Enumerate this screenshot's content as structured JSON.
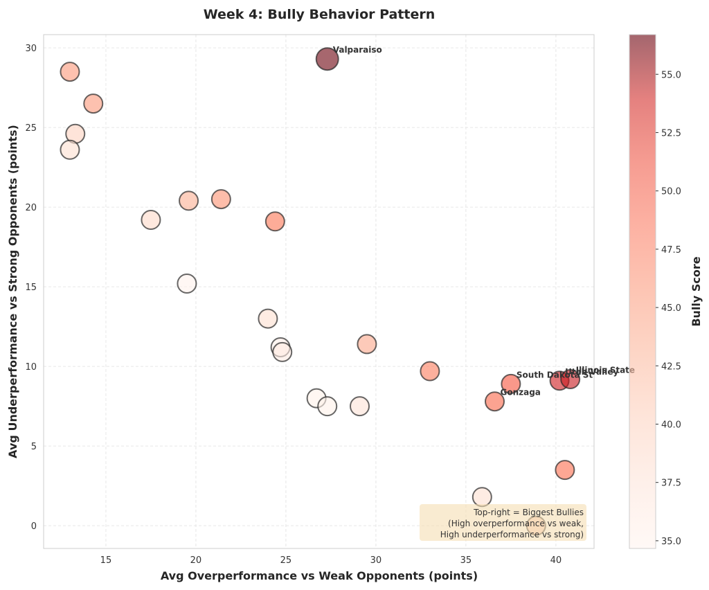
{
  "chart_data": {
    "type": "scatter",
    "title": "Week 4: Bully Behavior Pattern",
    "xlabel": "Avg Overperformance vs Weak Opponents (points)",
    "ylabel": "Avg Underperformance vs Strong Opponents (points)",
    "xlim": [
      11.54,
      42.12
    ],
    "ylim": [
      -1.43,
      30.83
    ],
    "xticks": [
      15,
      20,
      25,
      30,
      35,
      40
    ],
    "yticks": [
      0,
      5,
      10,
      15,
      20,
      25,
      30
    ],
    "grid": true,
    "colorbar": {
      "label": "Bully Score",
      "range": [
        34.67,
        56.7
      ],
      "ticks": [
        "35.0",
        "37.5",
        "40.0",
        "42.5",
        "45.0",
        "47.5",
        "50.0",
        "52.5",
        "55.0"
      ],
      "colormap": "Reds",
      "alpha": 0.6
    },
    "annotation_box": {
      "lines": [
        "Top-right = Biggest Bullies",
        "(High overperformance vs weak,",
        "High underperformance vs strong)"
      ],
      "position": "bottom-right",
      "color": "#f5deb3"
    },
    "points": [
      {
        "x": 27.3,
        "y": 29.3,
        "score": 56.5,
        "label": "Valparaiso",
        "large": true
      },
      {
        "x": 13.0,
        "y": 28.5,
        "score": 42.5,
        "label": ""
      },
      {
        "x": 14.3,
        "y": 26.5,
        "score": 42.5,
        "label": ""
      },
      {
        "x": 13.3,
        "y": 24.6,
        "score": 38.5,
        "label": ""
      },
      {
        "x": 13.0,
        "y": 23.6,
        "score": 37.5,
        "label": ""
      },
      {
        "x": 17.5,
        "y": 19.2,
        "score": 38.0,
        "label": ""
      },
      {
        "x": 19.6,
        "y": 20.4,
        "score": 41.0,
        "label": ""
      },
      {
        "x": 21.4,
        "y": 20.5,
        "score": 43.0,
        "label": ""
      },
      {
        "x": 24.4,
        "y": 19.1,
        "score": 45.0,
        "label": ""
      },
      {
        "x": 19.5,
        "y": 15.2,
        "score": 35.0,
        "label": ""
      },
      {
        "x": 24.0,
        "y": 13.0,
        "score": 37.5,
        "label": ""
      },
      {
        "x": 24.7,
        "y": 11.2,
        "score": 35.5,
        "label": ""
      },
      {
        "x": 24.8,
        "y": 10.9,
        "score": 36.0,
        "label": ""
      },
      {
        "x": 29.5,
        "y": 11.4,
        "score": 41.5,
        "label": ""
      },
      {
        "x": 26.7,
        "y": 8.0,
        "score": 35.2,
        "label": ""
      },
      {
        "x": 27.3,
        "y": 7.5,
        "score": 35.2,
        "label": ""
      },
      {
        "x": 29.1,
        "y": 7.5,
        "score": 37.0,
        "label": ""
      },
      {
        "x": 33.0,
        "y": 9.7,
        "score": 44.5,
        "label": ""
      },
      {
        "x": 37.5,
        "y": 8.9,
        "score": 47.0,
        "label": "South Dakota St"
      },
      {
        "x": 36.6,
        "y": 7.8,
        "score": 46.0,
        "label": "Gonzaga"
      },
      {
        "x": 40.2,
        "y": 9.1,
        "score": 51.0,
        "label": "Utah Valley"
      },
      {
        "x": 40.8,
        "y": 9.2,
        "score": 51.5,
        "label": "Illinois State"
      },
      {
        "x": 40.5,
        "y": 3.5,
        "score": 45.5,
        "label": ""
      },
      {
        "x": 35.9,
        "y": 1.8,
        "score": 37.5,
        "label": ""
      },
      {
        "x": 38.9,
        "y": 0.0,
        "score": 40.0,
        "label": ""
      }
    ]
  }
}
